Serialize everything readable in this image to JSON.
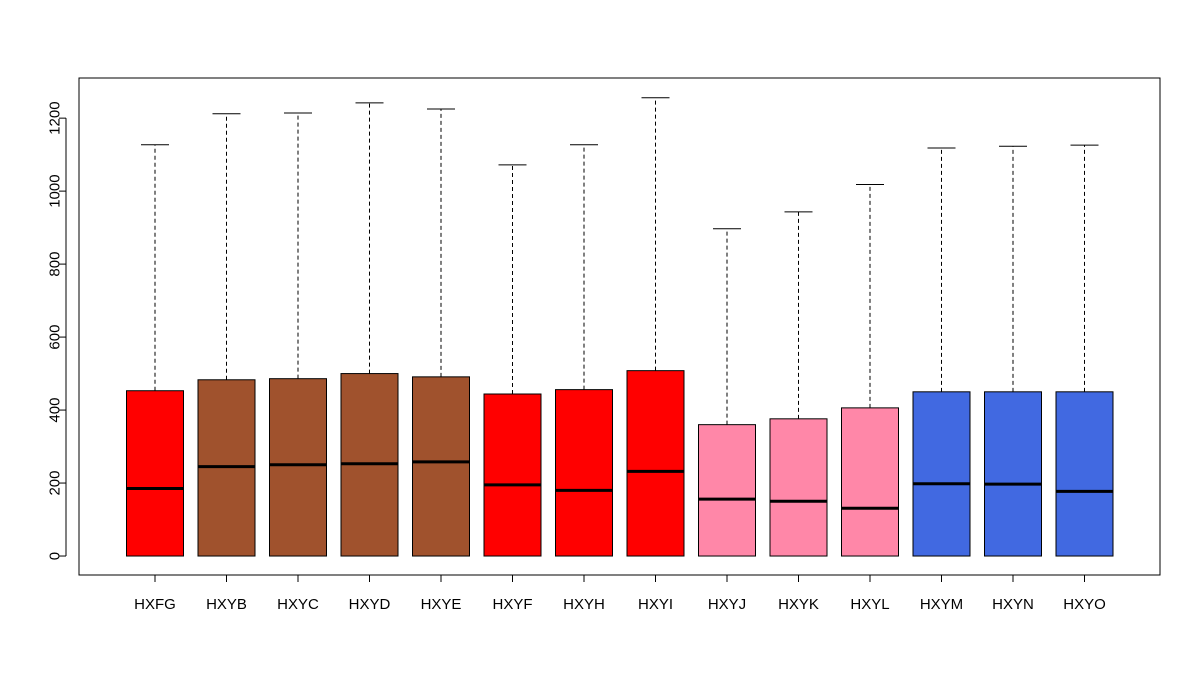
{
  "chart_data": {
    "type": "boxplot",
    "title": "",
    "xlabel": "",
    "ylabel": "",
    "ylim": [
      -52,
      1310
    ],
    "yticks": [
      0,
      200,
      400,
      600,
      800,
      1000,
      1200
    ],
    "grid": false,
    "legend": "none",
    "categories": [
      "HXFG",
      "HXYB",
      "HXYC",
      "HXYD",
      "HXYE",
      "HXYF",
      "HXYH",
      "HXYI",
      "HXYJ",
      "HXYK",
      "HXYL",
      "HXYM",
      "HXYN",
      "HXYO"
    ],
    "boxes": [
      {
        "q1": 0,
        "median": 185,
        "q3": 453,
        "whisker_low": 0,
        "whisker_high": 1127,
        "color": "#FF0000"
      },
      {
        "q1": 0,
        "median": 245,
        "q3": 483,
        "whisker_low": 0,
        "whisker_high": 1212,
        "color": "#A0522D"
      },
      {
        "q1": 0,
        "median": 250,
        "q3": 486,
        "whisker_low": 0,
        "whisker_high": 1214,
        "color": "#A0522D"
      },
      {
        "q1": 0,
        "median": 253,
        "q3": 500,
        "whisker_low": 0,
        "whisker_high": 1242,
        "color": "#A0522D"
      },
      {
        "q1": 0,
        "median": 258,
        "q3": 491,
        "whisker_low": 0,
        "whisker_high": 1225,
        "color": "#A0522D"
      },
      {
        "q1": 0,
        "median": 195,
        "q3": 444,
        "whisker_low": 0,
        "whisker_high": 1072,
        "color": "#FF0000"
      },
      {
        "q1": 0,
        "median": 180,
        "q3": 456,
        "whisker_low": 0,
        "whisker_high": 1127,
        "color": "#FF0000"
      },
      {
        "q1": 0,
        "median": 232,
        "q3": 508,
        "whisker_low": 0,
        "whisker_high": 1256,
        "color": "#FF0000"
      },
      {
        "q1": 0,
        "median": 156,
        "q3": 360,
        "whisker_low": 0,
        "whisker_high": 897,
        "color": "#FF87A8"
      },
      {
        "q1": 0,
        "median": 150,
        "q3": 376,
        "whisker_low": 0,
        "whisker_high": 943,
        "color": "#FF87A8"
      },
      {
        "q1": 0,
        "median": 131,
        "q3": 406,
        "whisker_low": 0,
        "whisker_high": 1018,
        "color": "#FF87A8"
      },
      {
        "q1": 0,
        "median": 198,
        "q3": 450,
        "whisker_low": 0,
        "whisker_high": 1118,
        "color": "#4169E1"
      },
      {
        "q1": 0,
        "median": 197,
        "q3": 450,
        "whisker_low": 0,
        "whisker_high": 1123,
        "color": "#4169E1"
      },
      {
        "q1": 0,
        "median": 177,
        "q3": 450,
        "whisker_low": 0,
        "whisker_high": 1126,
        "color": "#4169E1"
      }
    ]
  }
}
